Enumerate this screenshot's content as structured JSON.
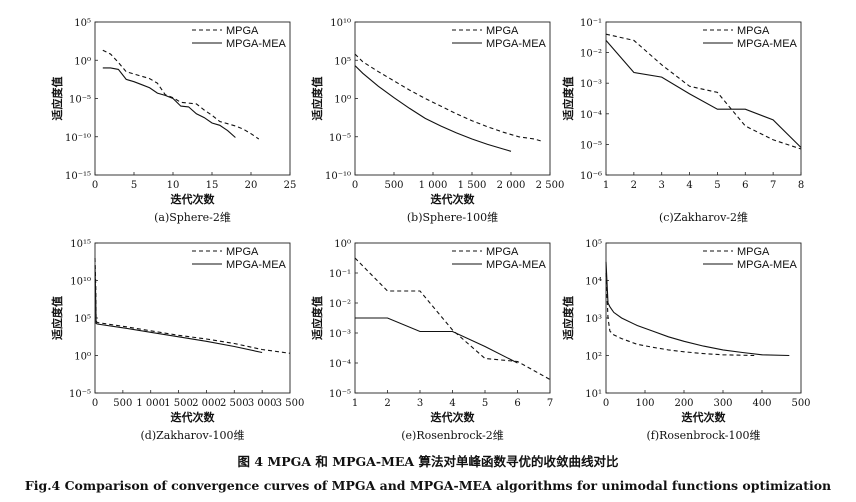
{
  "legend_labels": [
    "MPGA",
    "MPGA-MEA"
  ],
  "caption_cn": "图 4    MPGA 和 MPGA-MEA 算法对单峰函数寻优的收敛曲线对比",
  "caption_en": "Fig.4    Comparison of convergence curves of MPGA and MPGA-MEA algorithms for unimodal functions optimization",
  "chart_data": [
    {
      "type": "line",
      "ylog": true,
      "subtitle": "(a)Sphere-2维",
      "xlabel": "迭代次数",
      "ylabel": "适应度值",
      "xlim": [
        0,
        25
      ],
      "ylim": [
        -15,
        5
      ],
      "xticks": [
        0,
        5,
        10,
        15,
        20,
        25
      ],
      "xtick_labels": [
        "0",
        "5",
        "10",
        "15",
        "20",
        "25"
      ],
      "yticks": [
        -15,
        -10,
        -5,
        0,
        5
      ],
      "ytick_labels": [
        "10⁻¹⁵",
        "10⁻¹⁰",
        "10⁻⁵",
        "10⁰",
        "10⁵"
      ],
      "legend": "top-right",
      "series": [
        {
          "name": "MPGA",
          "style": "dashed",
          "x": [
            1,
            2,
            3,
            4,
            5,
            6,
            7,
            8,
            9,
            10,
            11,
            12,
            13,
            14,
            15,
            16,
            17,
            18,
            19,
            20,
            21
          ],
          "y": [
            1.3,
            0.8,
            -0.3,
            -1.5,
            -1.8,
            -2.1,
            -2.4,
            -3.0,
            -4.5,
            -4.9,
            -5.5,
            -5.6,
            -5.7,
            -6.5,
            -7.2,
            -8.0,
            -8.3,
            -8.6,
            -9.0,
            -9.6,
            -10.3
          ]
        },
        {
          "name": "MPGA-MEA",
          "style": "solid",
          "x": [
            1,
            2,
            3,
            4,
            5,
            6,
            7,
            8,
            9,
            10,
            11,
            12,
            13,
            14,
            15,
            16,
            17,
            18
          ],
          "y": [
            -1.0,
            -1.0,
            -1.2,
            -2.5,
            -2.8,
            -3.2,
            -3.6,
            -4.3,
            -4.6,
            -5.0,
            -6.0,
            -6.1,
            -7.0,
            -7.5,
            -8.2,
            -8.5,
            -9.2,
            -10.1
          ]
        }
      ]
    },
    {
      "type": "line",
      "ylog": true,
      "subtitle": "(b)Sphere-100维",
      "xlabel": "迭代次数",
      "ylabel": "适应度值",
      "xlim": [
        0,
        2500
      ],
      "ylim": [
        -10,
        10
      ],
      "xticks": [
        0,
        500,
        1000,
        1500,
        2000,
        2500
      ],
      "xtick_labels": [
        "0",
        "500",
        "1 000",
        "1 500",
        "2 000",
        "2 500"
      ],
      "yticks": [
        -10,
        -5,
        0,
        5,
        10
      ],
      "ytick_labels": [
        "10⁻¹⁰",
        "10⁻⁵",
        "10⁰",
        "10⁵",
        "10¹⁰"
      ],
      "legend": "top-right",
      "series": [
        {
          "name": "MPGA",
          "style": "dashed",
          "x": [
            0,
            100,
            300,
            500,
            700,
            900,
            1100,
            1300,
            1500,
            1700,
            1900,
            2100,
            2300,
            2400
          ],
          "y": [
            5.8,
            4.8,
            3.5,
            2.3,
            1.1,
            0.0,
            -1.0,
            -2.0,
            -2.9,
            -3.7,
            -4.4,
            -5.0,
            -5.3,
            -5.6
          ]
        },
        {
          "name": "MPGA-MEA",
          "style": "solid",
          "x": [
            0,
            100,
            300,
            500,
            700,
            900,
            1100,
            1300,
            1500,
            1700,
            1900,
            2000
          ],
          "y": [
            4.3,
            3.3,
            1.6,
            0.1,
            -1.3,
            -2.6,
            -3.6,
            -4.5,
            -5.3,
            -6.0,
            -6.6,
            -6.9
          ]
        }
      ]
    },
    {
      "type": "line",
      "ylog": true,
      "subtitle": "(c)Zakharov-2维",
      "xlabel": "",
      "ylabel": "适应度值",
      "xlim": [
        1,
        8
      ],
      "ylim": [
        -6,
        -1
      ],
      "xticks": [
        1,
        2,
        3,
        4,
        5,
        6,
        7,
        8
      ],
      "xtick_labels": [
        "1",
        "2",
        "3",
        "4",
        "5",
        "6",
        "7",
        "8"
      ],
      "yticks": [
        -6,
        -5,
        -4,
        -3,
        -2,
        -1
      ],
      "ytick_labels": [
        "10⁻⁶",
        "10⁻⁵",
        "10⁻⁴",
        "10⁻³",
        "10⁻²",
        "10⁻¹"
      ],
      "legend": "top-right",
      "series": [
        {
          "name": "MPGA",
          "style": "dashed",
          "x": [
            1,
            2,
            3,
            4,
            5,
            6,
            7,
            8
          ],
          "y": [
            -1.4,
            -1.6,
            -2.4,
            -3.1,
            -3.3,
            -4.4,
            -4.85,
            -5.15
          ]
        },
        {
          "name": "MPGA-MEA",
          "style": "solid",
          "x": [
            1,
            2,
            3,
            4,
            5,
            6,
            7,
            8
          ],
          "y": [
            -1.6,
            -2.65,
            -2.8,
            -3.35,
            -3.85,
            -3.85,
            -4.2,
            -5.1
          ]
        }
      ]
    },
    {
      "type": "line",
      "ylog": true,
      "subtitle": "(d)Zakharov-100维",
      "xlabel": "迭代次数",
      "ylabel": "适应度值",
      "xlim": [
        0,
        3500
      ],
      "ylim": [
        -5,
        15
      ],
      "xticks": [
        0,
        500,
        1000,
        1500,
        2000,
        2500,
        3000,
        3500
      ],
      "xtick_labels": [
        "0",
        "500",
        "1 000",
        "1 500",
        "2 000",
        "2 500",
        "3 000",
        "3 500"
      ],
      "yticks": [
        -5,
        0,
        5,
        10,
        15
      ],
      "ytick_labels": [
        "10⁻⁵",
        "10⁰",
        "10⁵",
        "10¹⁰",
        "10¹⁵"
      ],
      "legend": "top-right",
      "series": [
        {
          "name": "MPGA",
          "style": "dashed",
          "x": [
            0,
            15,
            20,
            40,
            500,
            1000,
            1500,
            2000,
            2500,
            3000,
            3500
          ],
          "y": [
            13,
            9,
            4.6,
            4.4,
            3.9,
            3.3,
            2.7,
            2.2,
            1.6,
            0.8,
            0.3
          ]
        },
        {
          "name": "MPGA-MEA",
          "style": "solid",
          "x": [
            0,
            15,
            20,
            40,
            500,
            1000,
            1500,
            2000,
            2500,
            3000
          ],
          "y": [
            12,
            7,
            4.3,
            4.2,
            3.7,
            3.1,
            2.5,
            1.9,
            1.2,
            0.4
          ]
        }
      ]
    },
    {
      "type": "line",
      "ylog": true,
      "subtitle": "(e)Rosenbrock-2维",
      "xlabel": "迭代次数",
      "ylabel": "适应度值",
      "xlim": [
        1,
        7
      ],
      "ylim": [
        -5,
        0
      ],
      "xticks": [
        1,
        2,
        3,
        4,
        5,
        6,
        7
      ],
      "xtick_labels": [
        "1",
        "2",
        "3",
        "4",
        "5",
        "6",
        "7"
      ],
      "yticks": [
        -5,
        -4,
        -3,
        -2,
        -1,
        0
      ],
      "ytick_labels": [
        "10⁻⁵",
        "10⁻⁴",
        "10⁻³",
        "10⁻²",
        "10⁻¹",
        "10⁰"
      ],
      "legend": "top-right",
      "series": [
        {
          "name": "MPGA",
          "style": "dashed",
          "x": [
            1,
            2,
            3,
            4,
            5,
            6,
            7
          ],
          "y": [
            -0.5,
            -1.6,
            -1.6,
            -2.9,
            -3.85,
            -3.95,
            -4.55
          ]
        },
        {
          "name": "MPGA-MEA",
          "style": "solid",
          "x": [
            1,
            2,
            3,
            4,
            5,
            6
          ],
          "y": [
            -2.5,
            -2.5,
            -2.95,
            -2.95,
            -3.45,
            -4.0
          ]
        }
      ]
    },
    {
      "type": "line",
      "ylog": true,
      "subtitle": "(f)Rosenbrock-100维",
      "xlabel": "迭代次数",
      "ylabel": "适应度值",
      "xlim": [
        0,
        500
      ],
      "ylim": [
        1,
        5
      ],
      "xticks": [
        0,
        100,
        200,
        300,
        400,
        500
      ],
      "xtick_labels": [
        "0",
        "100",
        "200",
        "300",
        "400",
        "500"
      ],
      "yticks": [
        1,
        2,
        3,
        4,
        5
      ],
      "ytick_labels": [
        "10¹",
        "10²",
        "10³",
        "10⁴",
        "10⁵"
      ],
      "legend": "top-right",
      "series": [
        {
          "name": "MPGA",
          "style": "dashed",
          "x": [
            0,
            5,
            10,
            20,
            40,
            80,
            120,
            160,
            200,
            250,
            300,
            380
          ],
          "y": [
            4.2,
            3.0,
            2.65,
            2.55,
            2.45,
            2.3,
            2.22,
            2.15,
            2.1,
            2.05,
            2.02,
            2.0
          ]
        },
        {
          "name": "MPGA-MEA",
          "style": "solid",
          "x": [
            0,
            5,
            10,
            20,
            40,
            80,
            120,
            160,
            200,
            250,
            300,
            350,
            400,
            470
          ],
          "y": [
            4.5,
            3.4,
            3.3,
            3.15,
            3.0,
            2.8,
            2.65,
            2.5,
            2.38,
            2.25,
            2.15,
            2.08,
            2.02,
            2.0
          ]
        }
      ]
    }
  ]
}
